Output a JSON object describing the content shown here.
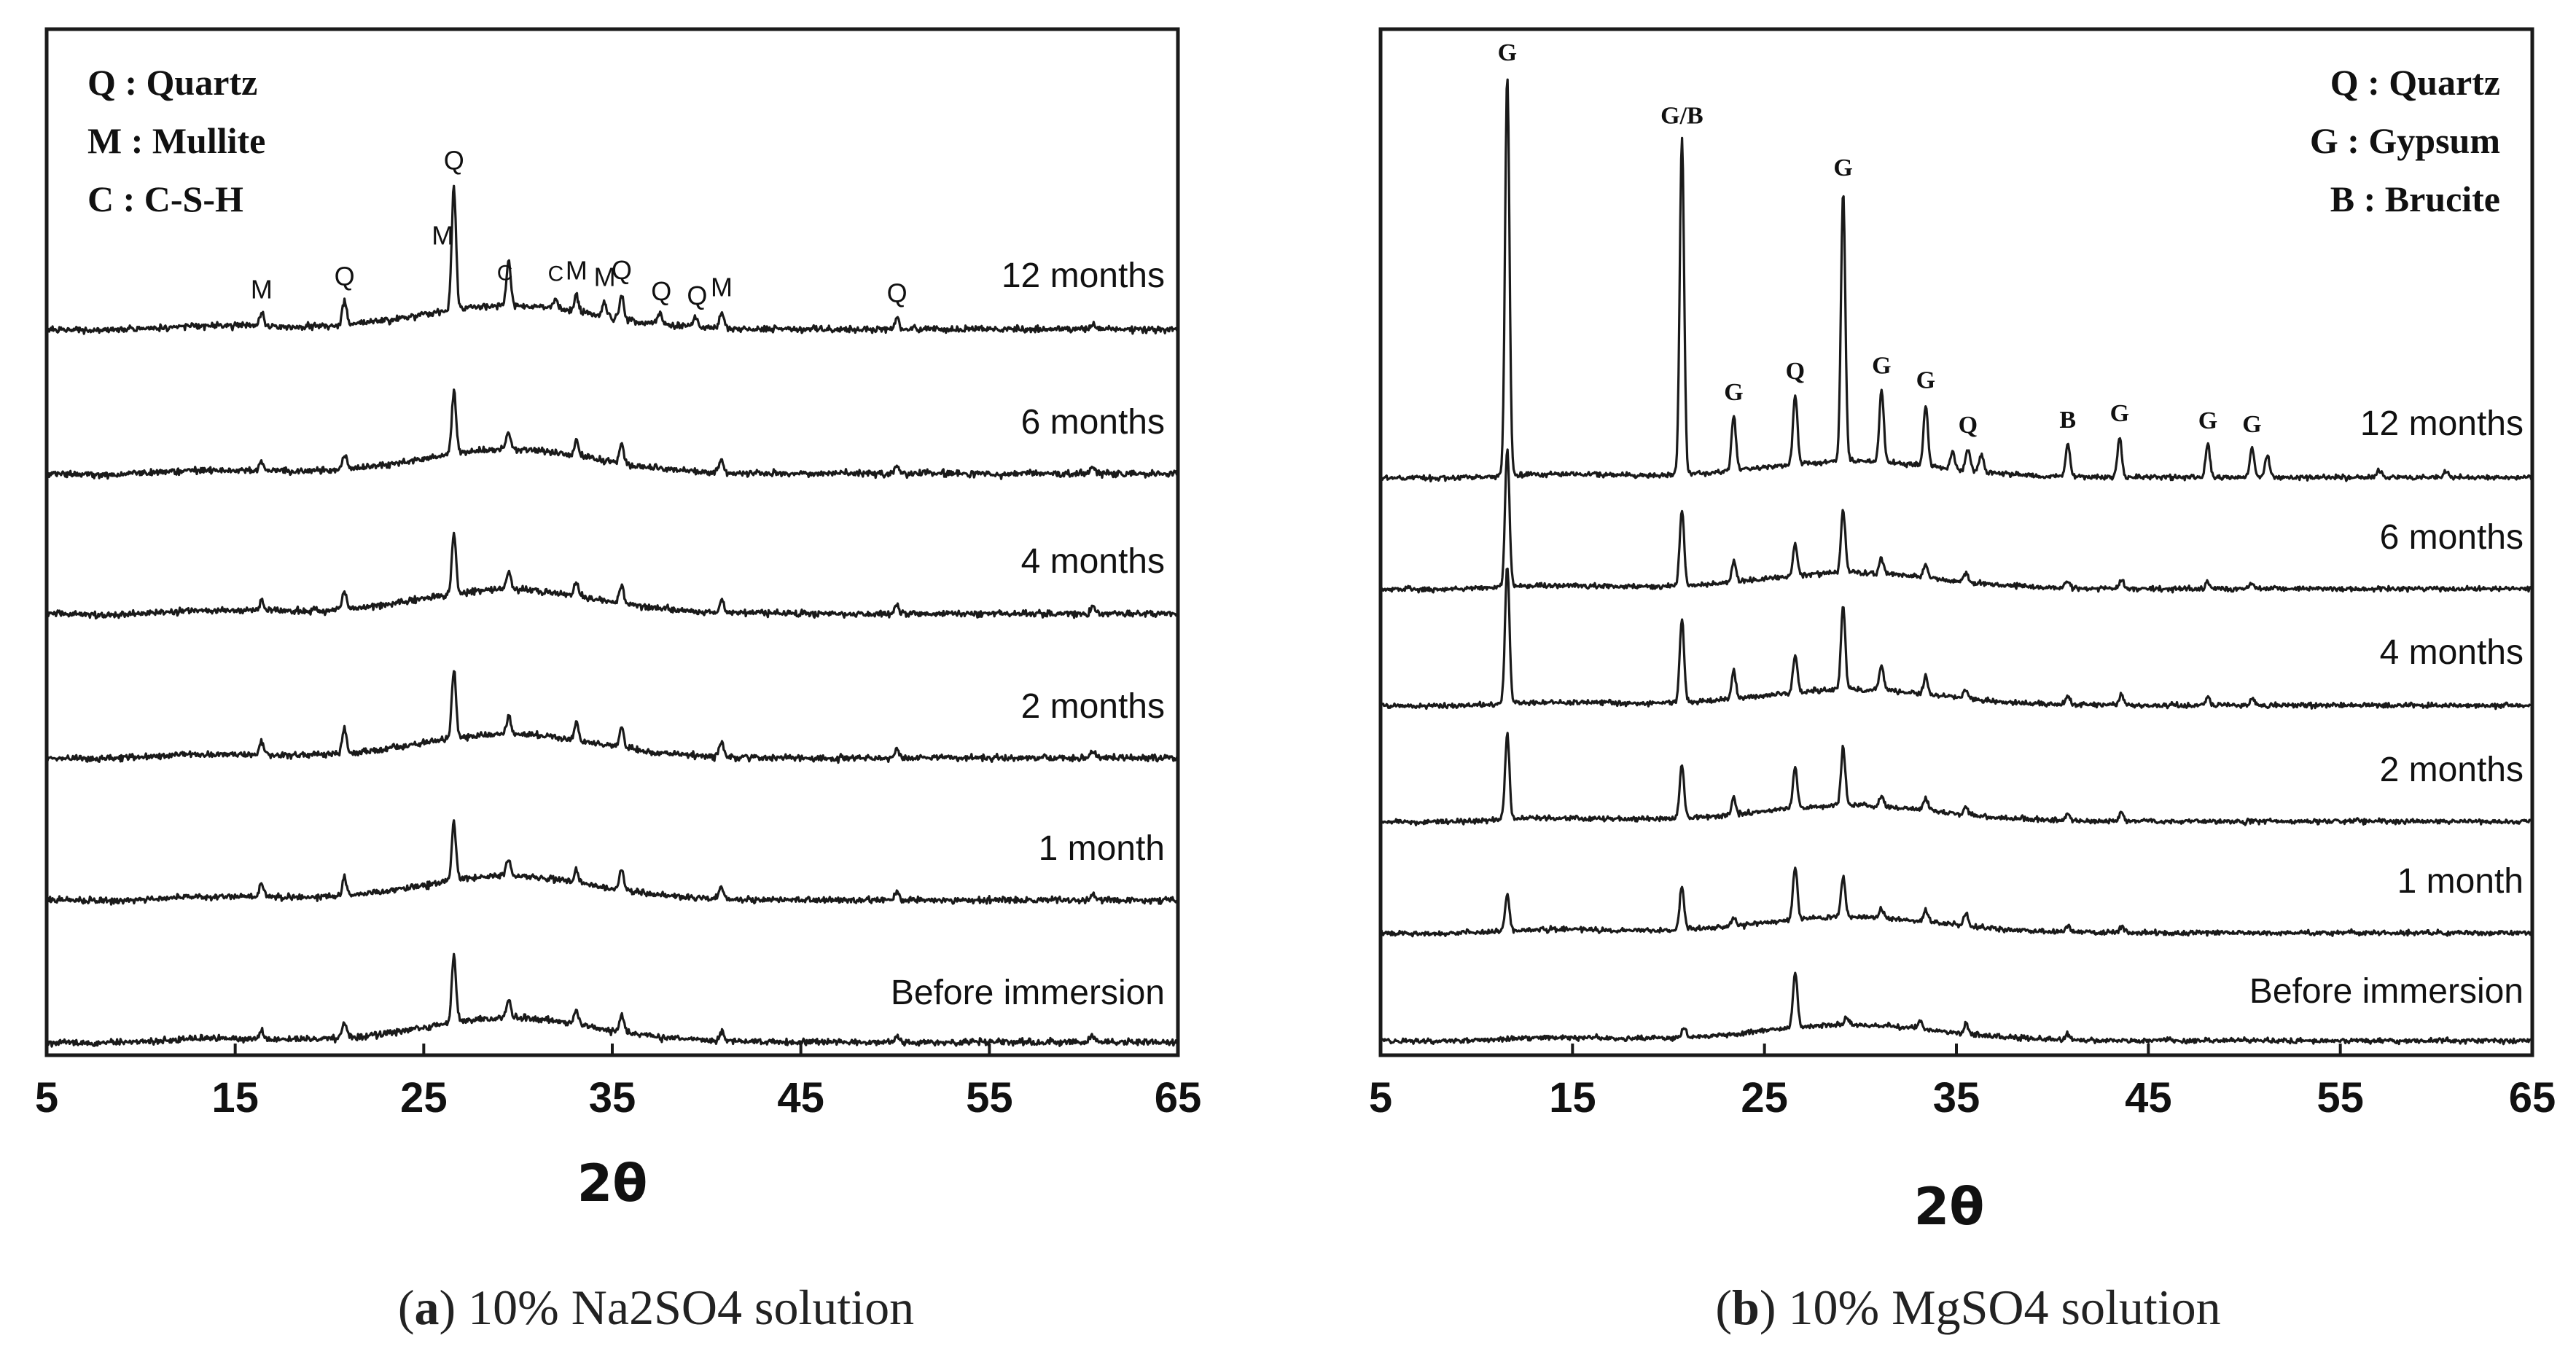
{
  "chart_data": [
    {
      "type": "line",
      "panel": "a",
      "xlabel": "2θ",
      "ylabel": "",
      "xlim": [
        5,
        65
      ],
      "xticks": [
        5,
        15,
        25,
        35,
        45,
        55,
        65
      ],
      "legend": [
        "Q : Quartz",
        "M : Mullite",
        "C : C-S-H"
      ],
      "legend_position": "top-left",
      "series": [
        {
          "name": "Before immersion",
          "peaks": [
            {
              "x": 16.4,
              "h": 0.1
            },
            {
              "x": 20.8,
              "h": 0.18
            },
            {
              "x": 26.6,
              "h": 0.85
            },
            {
              "x": 29.5,
              "h": 0.22
            },
            {
              "x": 33.1,
              "h": 0.18
            },
            {
              "x": 35.5,
              "h": 0.22
            },
            {
              "x": 40.8,
              "h": 0.12
            },
            {
              "x": 50.1,
              "h": 0.08
            },
            {
              "x": 60.5,
              "h": 0.08
            }
          ]
        },
        {
          "name": "1 month",
          "peaks": [
            {
              "x": 16.4,
              "h": 0.16
            },
            {
              "x": 20.8,
              "h": 0.22
            },
            {
              "x": 26.6,
              "h": 0.72
            },
            {
              "x": 29.5,
              "h": 0.22
            },
            {
              "x": 33.1,
              "h": 0.16
            },
            {
              "x": 35.5,
              "h": 0.25
            },
            {
              "x": 40.8,
              "h": 0.15
            },
            {
              "x": 50.1,
              "h": 0.1
            },
            {
              "x": 60.5,
              "h": 0.08
            }
          ]
        },
        {
          "name": "2 months",
          "peaks": [
            {
              "x": 16.4,
              "h": 0.14
            },
            {
              "x": 20.8,
              "h": 0.32
            },
            {
              "x": 26.6,
              "h": 0.85
            },
            {
              "x": 29.5,
              "h": 0.22
            },
            {
              "x": 33.1,
              "h": 0.22
            },
            {
              "x": 35.5,
              "h": 0.25
            },
            {
              "x": 40.8,
              "h": 0.18
            },
            {
              "x": 50.1,
              "h": 0.1
            },
            {
              "x": 60.5,
              "h": 0.1
            }
          ]
        },
        {
          "name": "4 months",
          "peaks": [
            {
              "x": 16.4,
              "h": 0.14
            },
            {
              "x": 20.8,
              "h": 0.22
            },
            {
              "x": 26.6,
              "h": 0.75
            },
            {
              "x": 29.5,
              "h": 0.22
            },
            {
              "x": 33.1,
              "h": 0.16
            },
            {
              "x": 35.5,
              "h": 0.22
            },
            {
              "x": 40.8,
              "h": 0.16
            },
            {
              "x": 50.1,
              "h": 0.1
            },
            {
              "x": 60.5,
              "h": 0.08
            }
          ]
        },
        {
          "name": "6 months",
          "peaks": [
            {
              "x": 16.4,
              "h": 0.12
            },
            {
              "x": 20.8,
              "h": 0.18
            },
            {
              "x": 26.6,
              "h": 0.8
            },
            {
              "x": 29.5,
              "h": 0.22
            },
            {
              "x": 33.1,
              "h": 0.18
            },
            {
              "x": 35.5,
              "h": 0.26
            },
            {
              "x": 40.8,
              "h": 0.16
            },
            {
              "x": 50.1,
              "h": 0.1
            },
            {
              "x": 60.5,
              "h": 0.08
            }
          ]
        },
        {
          "name": "12 months",
          "peaks": [
            {
              "x": 16.4,
              "h": 0.18
            },
            {
              "x": 20.8,
              "h": 0.3
            },
            {
              "x": 26.6,
              "h": 1.55
            },
            {
              "x": 29.5,
              "h": 0.55
            },
            {
              "x": 32.0,
              "h": 0.12
            },
            {
              "x": 33.1,
              "h": 0.2
            },
            {
              "x": 34.6,
              "h": 0.18
            },
            {
              "x": 35.5,
              "h": 0.3
            },
            {
              "x": 37.5,
              "h": 0.15
            },
            {
              "x": 39.4,
              "h": 0.12
            },
            {
              "x": 40.8,
              "h": 0.2
            },
            {
              "x": 50.1,
              "h": 0.14
            },
            {
              "x": 60.5,
              "h": 0.08
            }
          ]
        }
      ],
      "annotations": [
        {
          "text": "M",
          "x": 16.4
        },
        {
          "text": "Q",
          "x": 20.8
        },
        {
          "text": "M",
          "x": 26.0
        },
        {
          "text": "Q",
          "x": 26.6
        },
        {
          "text": "C",
          "x": 29.3
        },
        {
          "text": "C",
          "x": 32.0
        },
        {
          "text": "M",
          "x": 33.1
        },
        {
          "text": "M",
          "x": 34.6
        },
        {
          "text": "Q",
          "x": 35.5
        },
        {
          "text": "Q",
          "x": 37.6
        },
        {
          "text": "Q",
          "x": 39.5
        },
        {
          "text": "M",
          "x": 40.8
        },
        {
          "text": "Q",
          "x": 50.1
        }
      ]
    },
    {
      "type": "line",
      "panel": "b",
      "xlabel": "2θ",
      "ylabel": "",
      "xlim": [
        5,
        65
      ],
      "xticks": [
        5,
        15,
        25,
        35,
        45,
        55,
        65
      ],
      "legend": [
        "Q : Quartz",
        "G : Gypsum",
        "B : Brucite"
      ],
      "legend_position": "top-right",
      "series": [
        {
          "name": "Before immersion",
          "peaks": [
            {
              "x": 20.8,
              "h": 0.12
            },
            {
              "x": 26.6,
              "h": 0.75
            },
            {
              "x": 29.3,
              "h": 0.1
            },
            {
              "x": 33.1,
              "h": 0.12
            },
            {
              "x": 35.5,
              "h": 0.14
            },
            {
              "x": 40.8,
              "h": 0.08
            }
          ]
        },
        {
          "name": "1 month",
          "peaks": [
            {
              "x": 11.6,
              "h": 0.5
            },
            {
              "x": 20.7,
              "h": 0.6
            },
            {
              "x": 23.4,
              "h": 0.12
            },
            {
              "x": 26.6,
              "h": 0.72
            },
            {
              "x": 29.1,
              "h": 0.55
            },
            {
              "x": 31.1,
              "h": 0.12
            },
            {
              "x": 33.4,
              "h": 0.16
            },
            {
              "x": 35.5,
              "h": 0.18
            },
            {
              "x": 40.8,
              "h": 0.1
            },
            {
              "x": 43.6,
              "h": 0.08
            }
          ]
        },
        {
          "name": "2 months",
          "peaks": [
            {
              "x": 11.6,
              "h": 1.15
            },
            {
              "x": 20.7,
              "h": 0.75
            },
            {
              "x": 23.4,
              "h": 0.22
            },
            {
              "x": 26.6,
              "h": 0.55
            },
            {
              "x": 29.1,
              "h": 0.8
            },
            {
              "x": 31.1,
              "h": 0.15
            },
            {
              "x": 33.4,
              "h": 0.16
            },
            {
              "x": 35.5,
              "h": 0.1
            },
            {
              "x": 40.8,
              "h": 0.1
            },
            {
              "x": 43.6,
              "h": 0.12
            }
          ]
        },
        {
          "name": "4 months",
          "peaks": [
            {
              "x": 11.6,
              "h": 1.9
            },
            {
              "x": 20.7,
              "h": 1.15
            },
            {
              "x": 23.4,
              "h": 0.38
            },
            {
              "x": 26.6,
              "h": 0.5
            },
            {
              "x": 29.1,
              "h": 1.15
            },
            {
              "x": 31.1,
              "h": 0.35
            },
            {
              "x": 33.4,
              "h": 0.25
            },
            {
              "x": 35.5,
              "h": 0.12
            },
            {
              "x": 40.8,
              "h": 0.12
            },
            {
              "x": 43.6,
              "h": 0.15
            },
            {
              "x": 48.1,
              "h": 0.12
            },
            {
              "x": 50.4,
              "h": 0.1
            }
          ]
        },
        {
          "name": "6 months",
          "peaks": [
            {
              "x": 11.6,
              "h": 1.9
            },
            {
              "x": 20.7,
              "h": 1.05
            },
            {
              "x": 23.4,
              "h": 0.28
            },
            {
              "x": 26.6,
              "h": 0.45
            },
            {
              "x": 29.1,
              "h": 0.85
            },
            {
              "x": 31.1,
              "h": 0.2
            },
            {
              "x": 33.4,
              "h": 0.16
            },
            {
              "x": 35.5,
              "h": 0.12
            },
            {
              "x": 40.8,
              "h": 0.1
            },
            {
              "x": 43.6,
              "h": 0.12
            },
            {
              "x": 48.1,
              "h": 0.08
            },
            {
              "x": 50.4,
              "h": 0.08
            }
          ]
        },
        {
          "name": "12 months",
          "peaks": [
            {
              "x": 11.6,
              "h": 5.5
            },
            {
              "x": 20.7,
              "h": 4.6
            },
            {
              "x": 23.4,
              "h": 0.75
            },
            {
              "x": 26.6,
              "h": 0.95
            },
            {
              "x": 29.1,
              "h": 3.7
            },
            {
              "x": 31.1,
              "h": 1.0
            },
            {
              "x": 33.4,
              "h": 0.85
            },
            {
              "x": 34.8,
              "h": 0.25
            },
            {
              "x": 35.6,
              "h": 0.3
            },
            {
              "x": 36.3,
              "h": 0.25
            },
            {
              "x": 40.8,
              "h": 0.45
            },
            {
              "x": 43.5,
              "h": 0.55
            },
            {
              "x": 48.1,
              "h": 0.45
            },
            {
              "x": 50.4,
              "h": 0.4
            },
            {
              "x": 51.2,
              "h": 0.3
            },
            {
              "x": 57.0,
              "h": 0.1
            },
            {
              "x": 60.5,
              "h": 0.08
            }
          ]
        }
      ],
      "annotations": [
        {
          "text": "G",
          "x": 11.6
        },
        {
          "text": "G/B",
          "x": 20.7
        },
        {
          "text": "G",
          "x": 23.4
        },
        {
          "text": "Q",
          "x": 26.6
        },
        {
          "text": "G",
          "x": 29.1
        },
        {
          "text": "G",
          "x": 31.1
        },
        {
          "text": "G",
          "x": 33.4
        },
        {
          "text": "Q",
          "x": 35.6
        },
        {
          "text": "B",
          "x": 40.8
        },
        {
          "text": "G",
          "x": 43.5
        },
        {
          "text": "G",
          "x": 48.1
        },
        {
          "text": "G",
          "x": 50.4
        }
      ]
    }
  ],
  "captions": {
    "a": {
      "letter": "a",
      "text": "10% Na2SO4 solution"
    },
    "b": {
      "letter": "b",
      "text": "10% MgSO4 solution"
    }
  },
  "colors": {
    "line": "#1a1a1a",
    "text": "#111111",
    "background": "#ffffff"
  }
}
